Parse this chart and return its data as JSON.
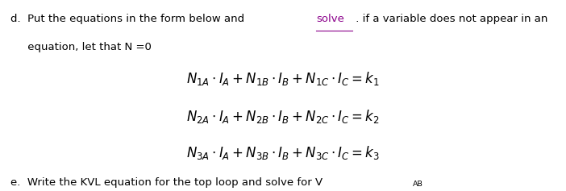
{
  "background_color": "#ffffff",
  "text_color": "#000000",
  "link_color": "#8B008B",
  "figsize": [
    7.02,
    2.37
  ],
  "dpi": 100,
  "line_d_part1": "d.  Put the equations in the form below and ",
  "line_d_link": "solve",
  "line_d_part2": " . if a variable does not appear in an",
  "line_d2": "     equation, let that N =0",
  "eq1": "$N_{1A} \\cdot I_A + N_{1B} \\cdot I_B + N_{1C} \\cdot I_C = k_1$",
  "eq2": "$N_{2A} \\cdot I_A + N_{2B} \\cdot I_B + N_{2C} \\cdot I_C = k_2$",
  "eq3": "$N_{3A} \\cdot I_A + N_{3B} \\cdot I_B + N_{3C} \\cdot I_C = k_3$",
  "line_e_part1": "e.  Write the KVL equation for the top loop and solve for V",
  "line_e_sub": "AB",
  "font_size_main": 9.5,
  "font_size_eq": 12,
  "font_size_e": 9.5
}
